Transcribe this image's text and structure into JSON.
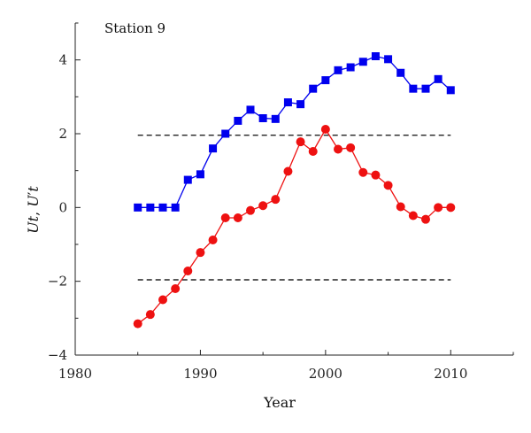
{
  "chart_data": {
    "type": "line",
    "annotation": "Station 9",
    "xlabel": "Year",
    "ylabel": "Ut, U't",
    "xlim": [
      1980,
      2015
    ],
    "ylim": [
      -4,
      5
    ],
    "xticks": [
      1980,
      1990,
      2000,
      2010
    ],
    "yticks": [
      -4,
      -2,
      0,
      2,
      4
    ],
    "grid": false,
    "reference_lines": [
      {
        "y": 1.96,
        "x_range": [
          1985,
          2010
        ],
        "style": "dashed"
      },
      {
        "y": -1.96,
        "x_range": [
          1985,
          2010
        ],
        "style": "dashed"
      }
    ],
    "series": [
      {
        "color": "#0000ee",
        "marker": "square",
        "x": [
          1985,
          1986,
          1987,
          1988,
          1989,
          1990,
          1991,
          1992,
          1993,
          1994,
          1995,
          1996,
          1997,
          1998,
          1999,
          2000,
          2001,
          2002,
          2003,
          2004,
          2005,
          2006,
          2007,
          2008,
          2009,
          2010
        ],
        "values": [
          0.0,
          0.0,
          0.0,
          0.0,
          0.75,
          0.9,
          1.6,
          2.0,
          2.35,
          2.65,
          2.42,
          2.4,
          2.85,
          2.8,
          3.22,
          3.45,
          3.72,
          3.8,
          3.95,
          4.1,
          4.02,
          3.65,
          3.22,
          3.22,
          3.48,
          3.18
        ]
      },
      {
        "color": "#ee1111",
        "marker": "circle",
        "x": [
          1985,
          1986,
          1987,
          1988,
          1989,
          1990,
          1991,
          1992,
          1993,
          1994,
          1995,
          1996,
          1997,
          1998,
          1999,
          2000,
          2001,
          2002,
          2003,
          2004,
          2005,
          2006,
          2007,
          2008,
          2009,
          2010
        ],
        "values": [
          -3.15,
          -2.9,
          -2.5,
          -2.2,
          -1.72,
          -1.22,
          -0.88,
          -0.28,
          -0.28,
          -0.08,
          0.05,
          0.22,
          0.98,
          1.78,
          1.52,
          2.12,
          1.58,
          1.62,
          0.95,
          0.88,
          0.6,
          0.02,
          -0.22,
          -0.32,
          0.0,
          0.0
        ]
      }
    ]
  }
}
